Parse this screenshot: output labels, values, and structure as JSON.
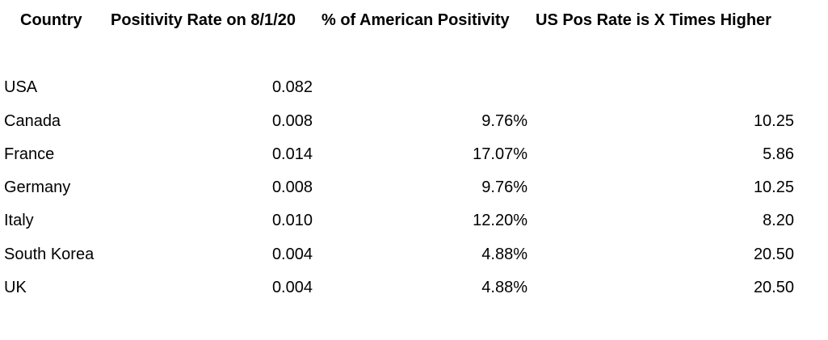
{
  "table": {
    "headers": [
      "Country",
      "Positivity Rate on 8/1/20",
      "% of American Positivity",
      "US Pos Rate is X Times Higher"
    ],
    "rows": [
      {
        "country": "USA",
        "rate": "0.082",
        "pct": "",
        "times": ""
      },
      {
        "country": "Canada",
        "rate": "0.008",
        "pct": "9.76%",
        "times": "10.25"
      },
      {
        "country": "France",
        "rate": "0.014",
        "pct": "17.07%",
        "times": "5.86"
      },
      {
        "country": "Germany",
        "rate": "0.008",
        "pct": "9.76%",
        "times": "10.25"
      },
      {
        "country": "Italy",
        "rate": "0.010",
        "pct": "12.20%",
        "times": "8.20"
      },
      {
        "country": "South Korea",
        "rate": "0.004",
        "pct": "4.88%",
        "times": "20.50"
      },
      {
        "country": "UK",
        "rate": "0.004",
        "pct": "4.88%",
        "times": "20.50"
      }
    ]
  }
}
